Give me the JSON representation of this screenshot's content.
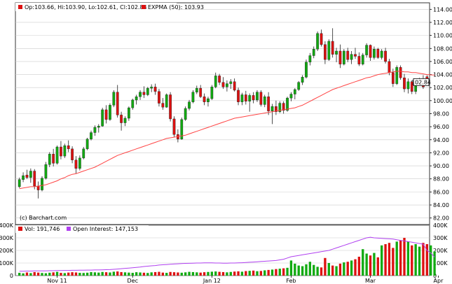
{
  "chart_data": [
    {
      "type": "candlestick",
      "legend": {
        "ohlc_text": "Op:103.66, Hi:103.90, Lo:102.61, Cl:102.84",
        "ma_text": "EXPMA (50): 103.93"
      },
      "watermark": "(c) Barchart.com",
      "last_price_label": "102.84",
      "y_ticks": [
        "114.00",
        "112.00",
        "110.00",
        "108.00",
        "106.00",
        "104.00",
        "102.00",
        "100.00",
        "98.00",
        "96.00",
        "94.00",
        "92.00",
        "90.00",
        "88.00",
        "86.00",
        "84.00",
        "82.00"
      ],
      "ylim": [
        81,
        115
      ],
      "colors": {
        "up": "#11aa11",
        "down": "#dd1111",
        "ma": "#ff4444",
        "grid": "#cccccc"
      },
      "candles": [
        [
          86.8,
          88.2,
          86.6,
          87.9
        ],
        [
          87.9,
          89.0,
          87.5,
          88.5
        ],
        [
          88.6,
          89.4,
          88.0,
          88.2
        ],
        [
          88.2,
          89.6,
          87.4,
          89.2
        ],
        [
          89.2,
          89.5,
          86.4,
          86.9
        ],
        [
          86.9,
          87.6,
          85.0,
          86.3
        ],
        [
          86.3,
          88.4,
          86.1,
          88.1
        ],
        [
          88.1,
          90.6,
          87.9,
          90.2
        ],
        [
          90.2,
          92.1,
          89.8,
          91.8
        ],
        [
          91.8,
          92.6,
          89.9,
          90.4
        ],
        [
          90.4,
          93.1,
          90.2,
          92.9
        ],
        [
          92.9,
          93.8,
          91.0,
          91.5
        ],
        [
          91.5,
          93.4,
          91.2,
          93.1
        ],
        [
          93.1,
          93.9,
          92.1,
          92.6
        ],
        [
          92.6,
          93.0,
          90.4,
          90.9
        ],
        [
          90.9,
          91.5,
          88.8,
          89.6
        ],
        [
          89.6,
          91.6,
          89.3,
          91.2
        ],
        [
          91.2,
          92.9,
          91.0,
          92.6
        ],
        [
          92.6,
          94.3,
          92.4,
          94.1
        ],
        [
          94.1,
          95.4,
          93.9,
          95.1
        ],
        [
          95.1,
          96.2,
          94.6,
          95.9
        ],
        [
          95.9,
          96.4,
          95.1,
          96.1
        ],
        [
          96.1,
          98.9,
          96.0,
          98.6
        ],
        [
          98.6,
          99.3,
          96.5,
          97.1
        ],
        [
          97.1,
          99.6,
          96.9,
          99.3
        ],
        [
          99.3,
          101.6,
          99.0,
          101.3
        ],
        [
          101.3,
          102.4,
          97.4,
          97.8
        ],
        [
          97.8,
          98.3,
          95.4,
          96.6
        ],
        [
          96.6,
          97.6,
          96.1,
          97.3
        ],
        [
          97.3,
          99.1,
          96.9,
          98.9
        ],
        [
          98.9,
          100.3,
          98.6,
          100.1
        ],
        [
          100.1,
          100.9,
          99.4,
          100.6
        ],
        [
          100.6,
          101.6,
          100.1,
          101.3
        ],
        [
          101.3,
          102.2,
          100.4,
          100.9
        ],
        [
          100.9,
          102.1,
          100.7,
          101.9
        ],
        [
          101.9,
          102.5,
          101.3,
          102.1
        ],
        [
          102.1,
          102.6,
          100.9,
          101.4
        ],
        [
          101.4,
          101.8,
          99.1,
          99.6
        ],
        [
          99.6,
          100.4,
          98.6,
          99.0
        ],
        [
          99.0,
          101.1,
          98.9,
          100.9
        ],
        [
          100.9,
          101.3,
          96.8,
          97.2
        ],
        [
          97.2,
          97.6,
          94.4,
          94.8
        ],
        [
          94.8,
          95.6,
          93.6,
          94.1
        ],
        [
          94.1,
          97.4,
          94.0,
          97.1
        ],
        [
          97.1,
          99.1,
          96.9,
          98.8
        ],
        [
          98.8,
          100.1,
          98.5,
          99.8
        ],
        [
          99.8,
          101.6,
          99.6,
          101.3
        ],
        [
          101.3,
          102.3,
          101.0,
          101.9
        ],
        [
          101.9,
          102.4,
          100.4,
          100.6
        ],
        [
          100.6,
          101.1,
          99.3,
          99.8
        ],
        [
          99.8,
          100.6,
          99.1,
          100.3
        ],
        [
          100.3,
          102.4,
          100.1,
          102.1
        ],
        [
          102.1,
          104.3,
          101.9,
          103.8
        ],
        [
          103.8,
          104.1,
          102.4,
          102.8
        ],
        [
          102.8,
          103.6,
          101.8,
          102.1
        ],
        [
          102.1,
          103.1,
          101.4,
          102.6
        ],
        [
          102.6,
          103.3,
          101.8,
          102.9
        ],
        [
          102.9,
          103.4,
          101.4,
          101.6
        ],
        [
          101.6,
          102.0,
          99.3,
          99.8
        ],
        [
          99.8,
          101.2,
          99.3,
          100.9
        ],
        [
          100.9,
          101.5,
          99.4,
          99.9
        ],
        [
          99.9,
          101.1,
          98.3,
          100.8
        ],
        [
          100.8,
          101.3,
          99.6,
          100.1
        ],
        [
          100.1,
          101.6,
          99.8,
          101.3
        ],
        [
          101.3,
          101.6,
          99.1,
          99.4
        ],
        [
          99.4,
          100.9,
          99.0,
          100.6
        ],
        [
          100.6,
          101.3,
          97.8,
          98.4
        ],
        [
          98.4,
          99.5,
          96.4,
          99.1
        ],
        [
          99.1,
          100.0,
          97.8,
          98.3
        ],
        [
          98.3,
          99.9,
          98.1,
          99.6
        ],
        [
          99.6,
          99.9,
          98.0,
          98.5
        ],
        [
          98.5,
          100.6,
          98.3,
          100.4
        ],
        [
          100.4,
          101.3,
          99.9,
          101.0
        ],
        [
          101.0,
          101.9,
          100.2,
          101.7
        ],
        [
          101.7,
          103.0,
          101.5,
          102.8
        ],
        [
          102.8,
          103.9,
          102.4,
          103.6
        ],
        [
          103.6,
          106.3,
          103.4,
          105.9
        ],
        [
          105.9,
          107.3,
          105.4,
          106.9
        ],
        [
          106.9,
          108.3,
          106.5,
          107.9
        ],
        [
          107.9,
          110.6,
          107.6,
          110.3
        ],
        [
          110.3,
          110.9,
          108.3,
          108.6
        ],
        [
          108.6,
          109.1,
          105.6,
          106.3
        ],
        [
          106.3,
          109.4,
          106.1,
          109.1
        ],
        [
          109.1,
          111.1,
          106.6,
          107.1
        ],
        [
          107.1,
          108.1,
          105.9,
          107.6
        ],
        [
          107.6,
          108.6,
          105.0,
          105.6
        ],
        [
          105.6,
          107.9,
          105.4,
          107.6
        ],
        [
          107.6,
          108.1,
          105.9,
          106.3
        ],
        [
          106.3,
          107.6,
          105.6,
          107.1
        ],
        [
          107.1,
          108.1,
          106.4,
          106.8
        ],
        [
          106.8,
          107.4,
          105.3,
          105.6
        ],
        [
          105.6,
          107.3,
          105.4,
          107.0
        ],
        [
          107.0,
          108.8,
          106.6,
          108.5
        ],
        [
          108.5,
          108.6,
          106.1,
          106.6
        ],
        [
          106.6,
          108.3,
          106.3,
          107.9
        ],
        [
          107.9,
          108.1,
          106.4,
          106.6
        ],
        [
          106.6,
          107.9,
          106.3,
          107.6
        ],
        [
          107.6,
          108.1,
          105.7,
          106.0
        ],
        [
          106.0,
          106.4,
          103.9,
          104.3
        ],
        [
          104.3,
          104.9,
          102.1,
          102.6
        ],
        [
          102.6,
          105.4,
          102.4,
          105.1
        ],
        [
          105.1,
          105.4,
          103.2,
          103.5
        ],
        [
          103.5,
          104.1,
          101.3,
          101.8
        ],
        [
          101.8,
          103.4,
          101.1,
          102.9
        ],
        [
          102.9,
          103.1,
          101.0,
          101.4
        ],
        [
          101.4,
          102.9,
          101.0,
          102.6
        ],
        [
          102.6,
          103.5,
          102.3,
          103.1
        ],
        [
          103.1,
          103.9,
          101.8,
          102.1
        ],
        [
          103.66,
          103.9,
          102.61,
          102.84
        ]
      ],
      "ma": [
        86.5,
        86.6,
        86.7,
        86.8,
        86.8,
        86.9,
        87.0,
        87.1,
        87.3,
        87.5,
        87.7,
        88.0,
        88.2,
        88.5,
        88.7,
        88.8,
        89.0,
        89.2,
        89.4,
        89.6,
        89.8,
        90.1,
        90.4,
        90.7,
        91.0,
        91.3,
        91.6,
        91.8,
        92.0,
        92.2,
        92.4,
        92.6,
        92.8,
        93.0,
        93.2,
        93.4,
        93.6,
        93.8,
        94.0,
        94.2,
        94.3,
        94.4,
        94.5,
        94.6,
        94.7,
        94.9,
        95.1,
        95.3,
        95.5,
        95.7,
        95.9,
        96.1,
        96.3,
        96.5,
        96.7,
        96.9,
        97.1,
        97.3,
        97.4,
        97.5,
        97.6,
        97.7,
        97.8,
        97.9,
        98.0,
        98.1,
        98.2,
        98.3,
        98.4,
        98.5,
        98.6,
        98.7,
        98.8,
        98.9,
        99.1,
        99.3,
        99.6,
        99.9,
        100.2,
        100.5,
        100.8,
        101.1,
        101.4,
        101.7,
        101.9,
        102.1,
        102.3,
        102.5,
        102.7,
        102.9,
        103.1,
        103.3,
        103.5,
        103.6,
        103.8,
        104.0,
        104.1,
        104.2,
        104.3,
        104.4,
        104.5,
        104.5,
        104.4,
        104.4,
        104.3,
        104.3,
        104.2,
        104.1,
        104.0,
        103.95,
        103.93
      ]
    },
    {
      "type": "bar",
      "legend": {
        "vol_text": "Vol: 191,746",
        "oi_text": "Open Interest: 147,153"
      },
      "y_ticks": [
        "400K",
        "300K",
        "200K",
        "100K",
        "0"
      ],
      "ylim": [
        0,
        400000
      ],
      "x_labels": [
        "Nov 11",
        "Dec",
        "Jan 12",
        "Feb",
        "Mar",
        "Apr"
      ],
      "x_label_positions": [
        10,
        30,
        51,
        72,
        93,
        111
      ],
      "colors": {
        "up": "#11aa11",
        "down": "#dd1111",
        "open_interest": "#b040f0"
      },
      "volume_k": [
        22,
        18,
        25,
        20,
        28,
        24,
        21,
        19,
        23,
        26,
        30,
        22,
        20,
        24,
        27,
        25,
        22,
        21,
        23,
        28,
        26,
        24,
        29,
        27,
        25,
        31,
        33,
        28,
        26,
        24,
        22,
        27,
        25,
        23,
        21,
        26,
        28,
        30,
        24,
        22,
        29,
        27,
        25,
        23,
        26,
        30,
        28,
        26,
        24,
        27,
        29,
        31,
        33,
        30,
        28,
        26,
        29,
        32,
        34,
        31,
        36,
        38,
        40,
        35,
        37,
        42,
        45,
        48,
        52,
        55,
        58,
        62,
        120,
        95,
        80,
        75,
        90,
        110,
        85,
        70,
        65,
        140,
        100,
        80,
        75,
        95,
        105,
        110,
        120,
        130,
        150,
        210,
        175,
        160,
        180,
        145,
        240,
        250,
        260,
        220,
        270,
        280,
        300,
        270,
        240,
        250,
        230,
        260,
        250,
        240,
        192
      ],
      "open_interest_k": [
        35,
        35,
        36,
        36,
        37,
        37,
        38,
        38,
        39,
        39,
        40,
        40,
        41,
        41,
        42,
        42,
        43,
        43,
        44,
        44,
        45,
        45,
        46,
        47,
        48,
        50,
        52,
        55,
        58,
        60,
        62,
        65,
        68,
        72,
        75,
        78,
        80,
        84,
        86,
        88,
        90,
        92,
        94,
        96,
        97,
        98,
        99,
        100,
        100,
        101,
        101,
        101,
        100,
        100,
        99,
        99,
        100,
        100,
        101,
        102,
        104,
        106,
        108,
        110,
        112,
        114,
        116,
        118,
        120,
        125,
        130,
        140,
        150,
        155,
        160,
        165,
        170,
        175,
        180,
        185,
        190,
        195,
        200,
        210,
        220,
        230,
        240,
        250,
        260,
        270,
        280,
        290,
        300,
        305,
        300,
        298,
        296,
        294,
        292,
        290,
        285,
        280,
        275,
        270,
        265,
        260,
        255,
        250,
        200,
        180,
        147
      ]
    }
  ]
}
